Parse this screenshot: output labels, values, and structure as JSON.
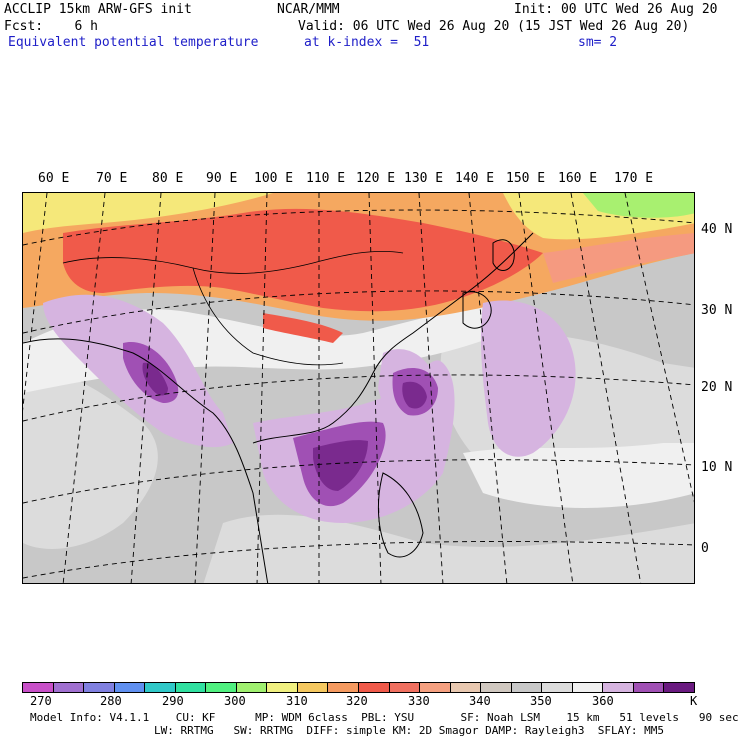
{
  "header": {
    "line1_left": "ACCLIP 15km ARW-GFS init",
    "line1_center": "NCAR/MMM",
    "line1_right": "Init: 00 UTC Wed 26 Aug 20",
    "line2_left": "Fcst:    6 h",
    "line2_right": "Valid: 06 UTC Wed 26 Aug 20 (15 JST Wed 26 Aug 20)",
    "field_name": "Equivalent potential temperature",
    "level": "at k-index =  51",
    "smooth": "sm= 2"
  },
  "map": {
    "lon_labels": [
      "60 E",
      "70 E",
      "80 E",
      "90 E",
      "100 E",
      "110 E",
      "120 E",
      "130 E",
      "140 E",
      "150 E",
      "160 E",
      "170 E"
    ],
    "lat_labels": [
      "40 N",
      "30 N",
      "20 N",
      "10 N",
      "0"
    ],
    "colors": {
      "background_gray": "#c8c8c8",
      "light_gray": "#dcdcdc",
      "white_band": "#f0f0f0",
      "lavender": "#d6b4e0",
      "purple": "#a050b4",
      "dark_purple": "#7a2a8e",
      "red": "#f05a4a",
      "salmon": "#f59a80",
      "orange": "#f5a860",
      "yellow": "#f5e87a",
      "green": "#a8f070"
    }
  },
  "colorbar": {
    "unit": "K",
    "colors": [
      "#c850c8",
      "#a070d0",
      "#8080e0",
      "#6090f0",
      "#30c8c8",
      "#30e0a0",
      "#50f080",
      "#a0f070",
      "#f0f080",
      "#f5c860",
      "#f59a60",
      "#f05a4a",
      "#f07060",
      "#f5a080",
      "#e8c8b0",
      "#d0c8c0",
      "#c8c8c8",
      "#dcdcdc",
      "#f0f0f0",
      "#d6b4e0",
      "#a050b4",
      "#6a1a80"
    ],
    "tick_labels": [
      "270",
      "280",
      "290",
      "300",
      "310",
      "320",
      "330",
      "340",
      "350",
      "360"
    ]
  },
  "footer": {
    "line1": "Model Info: V4.1.1    CU: KF      MP: WDM 6class  PBL: YSU       SF: Noah LSM    15 km   51 levels   90 sec",
    "line2": "LW: RRTMG   SW: RRTMG  DIFF: simple KM: 2D Smagor DAMP: Rayleigh3  SFLAY: MM5"
  }
}
